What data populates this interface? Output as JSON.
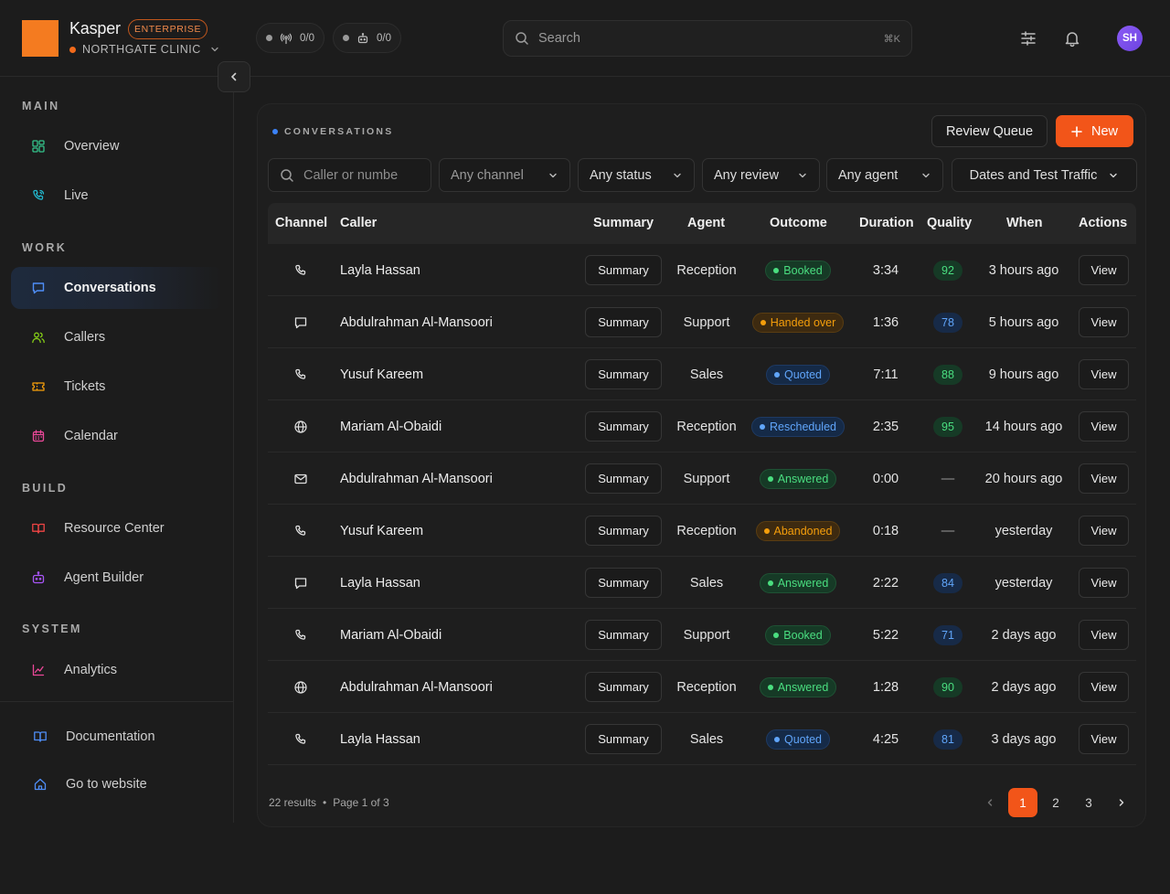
{
  "brand": {
    "name": "Kasper",
    "badge": "ENTERPRISE",
    "org": "NORTHGATE CLINIC"
  },
  "stats": [
    {
      "icon": "antenna-icon",
      "value": "0/0"
    },
    {
      "icon": "robot-icon",
      "value": "0/0"
    }
  ],
  "search": {
    "placeholder": "Search",
    "shortcut": "⌘K"
  },
  "user": {
    "initials": "SH"
  },
  "sidebar": {
    "main_title": "MAIN",
    "main": [
      {
        "label": "Overview",
        "icon": "grid-icon"
      },
      {
        "label": "Live",
        "icon": "phone-live-icon"
      }
    ],
    "work_title": "WORK",
    "work": [
      {
        "label": "Conversations",
        "icon": "chat-icon",
        "active": true
      },
      {
        "label": "Callers",
        "icon": "users-icon"
      },
      {
        "label": "Tickets",
        "icon": "ticket-icon"
      },
      {
        "label": "Calendar",
        "icon": "calendar-icon"
      }
    ],
    "build_title": "BUILD",
    "build": [
      {
        "label": "Resource Center",
        "icon": "book-icon"
      },
      {
        "label": "Agent Builder",
        "icon": "robot-icon"
      }
    ],
    "system_title": "SYSTEM",
    "system": [
      {
        "label": "Analytics",
        "icon": "chart-icon"
      }
    ],
    "footer": [
      {
        "label": "Documentation",
        "icon": "book-open-icon"
      },
      {
        "label": "Go to website",
        "icon": "home-icon"
      }
    ]
  },
  "panel": {
    "title": "CONVERSATIONS",
    "review_label": "Review Queue",
    "new_label": "New"
  },
  "filters": {
    "caller_placeholder": "Caller or numbe",
    "channel": "Any channel",
    "status": "Any status",
    "review": "Any review",
    "agent": "Any agent",
    "dates": "Dates and Test Traffic"
  },
  "table": {
    "headers": {
      "channel": "Channel",
      "caller": "Caller",
      "summary": "Summary",
      "agent": "Agent",
      "outcome": "Outcome",
      "duration": "Duration",
      "quality": "Quality",
      "when": "When",
      "actions": "Actions"
    },
    "summary_label": "Summary",
    "view_label": "View",
    "rows": [
      {
        "channel": "phone",
        "caller": "Layla Hassan",
        "agent": "Reception",
        "outcome": "Booked",
        "duration": "3:34",
        "quality": "92",
        "when": "3 hours ago"
      },
      {
        "channel": "chat",
        "caller": "Abdulrahman Al-Mansoori",
        "agent": "Support",
        "outcome": "Handed over",
        "duration": "1:36",
        "quality": "78",
        "when": "5 hours ago"
      },
      {
        "channel": "phone",
        "caller": "Yusuf Kareem",
        "agent": "Sales",
        "outcome": "Quoted",
        "duration": "7:11",
        "quality": "88",
        "when": "9 hours ago"
      },
      {
        "channel": "web",
        "caller": "Mariam Al-Obaidi",
        "agent": "Reception",
        "outcome": "Rescheduled",
        "duration": "2:35",
        "quality": "95",
        "when": "14 hours ago"
      },
      {
        "channel": "email",
        "caller": "Abdulrahman Al-Mansoori",
        "agent": "Support",
        "outcome": "Answered",
        "duration": "0:00",
        "quality": "—",
        "when": "20 hours ago"
      },
      {
        "channel": "phone",
        "caller": "Yusuf Kareem",
        "agent": "Reception",
        "outcome": "Abandoned",
        "duration": "0:18",
        "quality": "—",
        "when": "yesterday"
      },
      {
        "channel": "chat",
        "caller": "Layla Hassan",
        "agent": "Sales",
        "outcome": "Answered",
        "duration": "2:22",
        "quality": "84",
        "when": "yesterday"
      },
      {
        "channel": "phone",
        "caller": "Mariam Al-Obaidi",
        "agent": "Support",
        "outcome": "Booked",
        "duration": "5:22",
        "quality": "71",
        "when": "2 days ago"
      },
      {
        "channel": "web",
        "caller": "Abdulrahman Al-Mansoori",
        "agent": "Reception",
        "outcome": "Answered",
        "duration": "1:28",
        "quality": "90",
        "when": "2 days ago"
      },
      {
        "channel": "phone",
        "caller": "Layla Hassan",
        "agent": "Sales",
        "outcome": "Quoted",
        "duration": "4:25",
        "quality": "81",
        "when": "3 days ago"
      }
    ]
  },
  "pagination": {
    "results": "22 results",
    "page_info": "Page 1 of 3",
    "pages": [
      "1",
      "2",
      "3"
    ],
    "current": "1"
  },
  "colors": {
    "accent": "#f25519",
    "outcome_green": "#4ade80",
    "outcome_orange": "#f59e0b",
    "outcome_blue": "#60a5fa",
    "quality_green": "#4ade80",
    "quality_blue": "#60a5fa"
  }
}
